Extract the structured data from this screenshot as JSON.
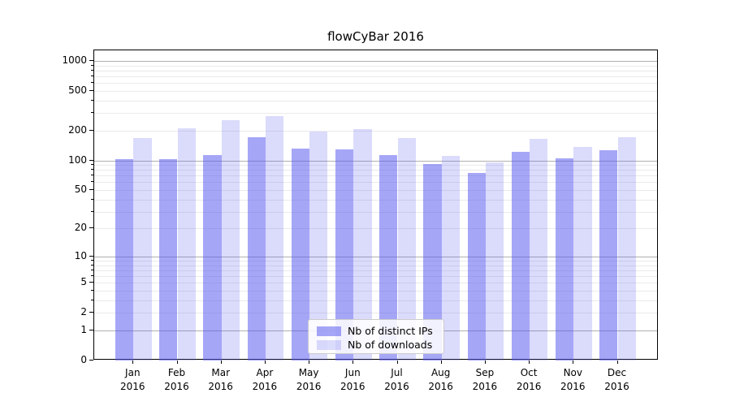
{
  "chart_data": {
    "type": "bar",
    "title": "flowCyBar 2016",
    "categories": [
      {
        "line1": "Jan",
        "line2": "2016"
      },
      {
        "line1": "Feb",
        "line2": "2016"
      },
      {
        "line1": "Mar",
        "line2": "2016"
      },
      {
        "line1": "Apr",
        "line2": "2016"
      },
      {
        "line1": "May",
        "line2": "2016"
      },
      {
        "line1": "Jun",
        "line2": "2016"
      },
      {
        "line1": "Jul",
        "line2": "2016"
      },
      {
        "line1": "Aug",
        "line2": "2016"
      },
      {
        "line1": "Sep",
        "line2": "2016"
      },
      {
        "line1": "Oct",
        "line2": "2016"
      },
      {
        "line1": "Nov",
        "line2": "2016"
      },
      {
        "line1": "Dec",
        "line2": "2016"
      }
    ],
    "series": [
      {
        "name": "Nb of distinct IPs",
        "color": "rgba(85,85,240,0.52)",
        "values": [
          103,
          103,
          113,
          172,
          132,
          130,
          113,
          92,
          74,
          122,
          104,
          127
        ]
      },
      {
        "name": "Nb of downloads",
        "color": "rgba(85,85,240,0.21)",
        "values": [
          168,
          209,
          255,
          277,
          195,
          208,
          168,
          112,
          95,
          165,
          136,
          171
        ]
      }
    ],
    "yscale": "log10(value+1)",
    "ytick_labels": [
      "0",
      "1",
      "2",
      "5",
      "10",
      "20",
      "50",
      "100",
      "200",
      "500",
      "1000"
    ],
    "yticks": [
      0,
      1,
      2,
      5,
      10,
      20,
      50,
      100,
      200,
      500,
      1000
    ],
    "yminor_ticks": [
      3,
      4,
      6,
      7,
      8,
      9,
      30,
      40,
      60,
      70,
      80,
      90,
      300,
      400,
      600,
      700,
      800,
      900
    ],
    "ylim": [
      0,
      1280
    ],
    "grid": "horizontal",
    "legend_position": "lower-center",
    "colors": {
      "grid_major": "#b0b0b0",
      "grid_minor": "#eaeaea",
      "spine": "#000000",
      "text": "#000000",
      "legend_border": "#cccccc",
      "legend_bg": "rgba(255,255,255,0.85)"
    }
  }
}
